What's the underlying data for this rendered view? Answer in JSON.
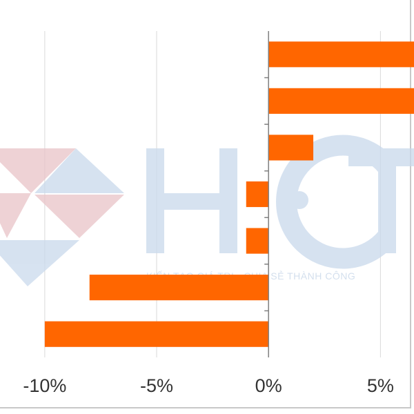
{
  "watermark": {
    "logo": "HCT",
    "slogan": "KIẾN TẠO GIÁ TRỊ - CHIA SẺ THÀNH CÔNG"
  },
  "chart_data": {
    "type": "bar",
    "orientation": "horizontal",
    "title": "",
    "xlabel": "",
    "ylabel": "",
    "categories": [
      "",
      "",
      "",
      "",
      "",
      "",
      ""
    ],
    "values": [
      6.5,
      6.5,
      2.0,
      -1.0,
      -1.0,
      -8.0,
      -10.0
    ],
    "xlim": [
      -12,
      6.5
    ],
    "xticks": [
      -10,
      -5,
      0,
      5
    ],
    "xtick_labels": [
      "-10%",
      "-5%",
      "0%",
      "5%"
    ],
    "grid": true,
    "legend": "none",
    "bar_color": "#ff6600",
    "grid_color": "#d9d9d9",
    "axis_color": "#7f7f7f"
  }
}
